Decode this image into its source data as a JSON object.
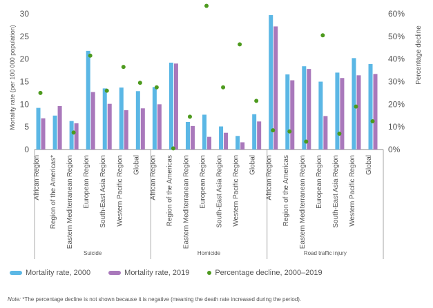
{
  "chart_data": {
    "type": "bar",
    "groups": [
      {
        "name": "Suicide",
        "categories": [
          "African Region",
          "Region of the Americas*",
          "Eastern Mediterranean Region",
          "European Region",
          "South-East Asia Region",
          "Western Pacific Region",
          "Global"
        ]
      },
      {
        "name": "Homicide",
        "categories": [
          "African Region",
          "Region of the Americas",
          "Eastern Mediterranean Region",
          "European Region",
          "South-East Asia Region",
          "Western Pacific Region",
          "Global"
        ]
      },
      {
        "name": "Road traffic injury",
        "categories": [
          "African Region",
          "Region of the Americas",
          "Eastern Mediterranean Region",
          "European Region",
          "South-East Asia Region",
          "Western Pacific Region",
          "Global"
        ]
      }
    ],
    "series": [
      {
        "name": "Mortality rate, 2000",
        "color": "#5bb7e5",
        "axis": "left",
        "values": [
          9.2,
          7.5,
          6.3,
          21.8,
          13.5,
          13.7,
          12.9,
          13.8,
          19.2,
          6.1,
          7.7,
          5.1,
          3.0,
          7.8,
          29.7,
          16.6,
          18.4,
          15.0,
          17.0,
          20.2,
          18.9
        ]
      },
      {
        "name": "Mortality rate, 2019",
        "color": "#a978bb",
        "axis": "left",
        "values": [
          6.9,
          9.6,
          5.8,
          12.7,
          10.1,
          8.7,
          9.1,
          10.0,
          19.0,
          5.2,
          2.8,
          3.7,
          1.6,
          6.2,
          27.2,
          15.3,
          17.8,
          7.4,
          15.8,
          16.4,
          16.7
        ]
      },
      {
        "name": "Percentage decline, 2000–2019",
        "color": "#4d9a1e",
        "axis": "right",
        "marker": "dot",
        "values": [
          25,
          null,
          7.5,
          41.5,
          26,
          36.5,
          29.5,
          27.5,
          0.5,
          14.5,
          63.5,
          27.5,
          46.5,
          21.5,
          8.5,
          8,
          3.5,
          50.5,
          7,
          19,
          12.5
        ]
      }
    ],
    "y_left": {
      "label": "Mortality rate (per 100 000 population)",
      "ticks": [
        "0",
        "5",
        "10",
        "15",
        "20",
        "25",
        "30"
      ],
      "range": [
        0,
        30
      ]
    },
    "y_right": {
      "label": "Percentage decline",
      "ticks": [
        "0%",
        "10%",
        "20%",
        "30%",
        "40%",
        "50%",
        "60%"
      ],
      "range": [
        0,
        60
      ]
    },
    "grid": false,
    "legend_position": "bottom-left"
  },
  "note": {
    "lead": "Note:",
    "text": " *The percentage decline is not shown because it is negative (meaning the death rate increased during the period)."
  }
}
